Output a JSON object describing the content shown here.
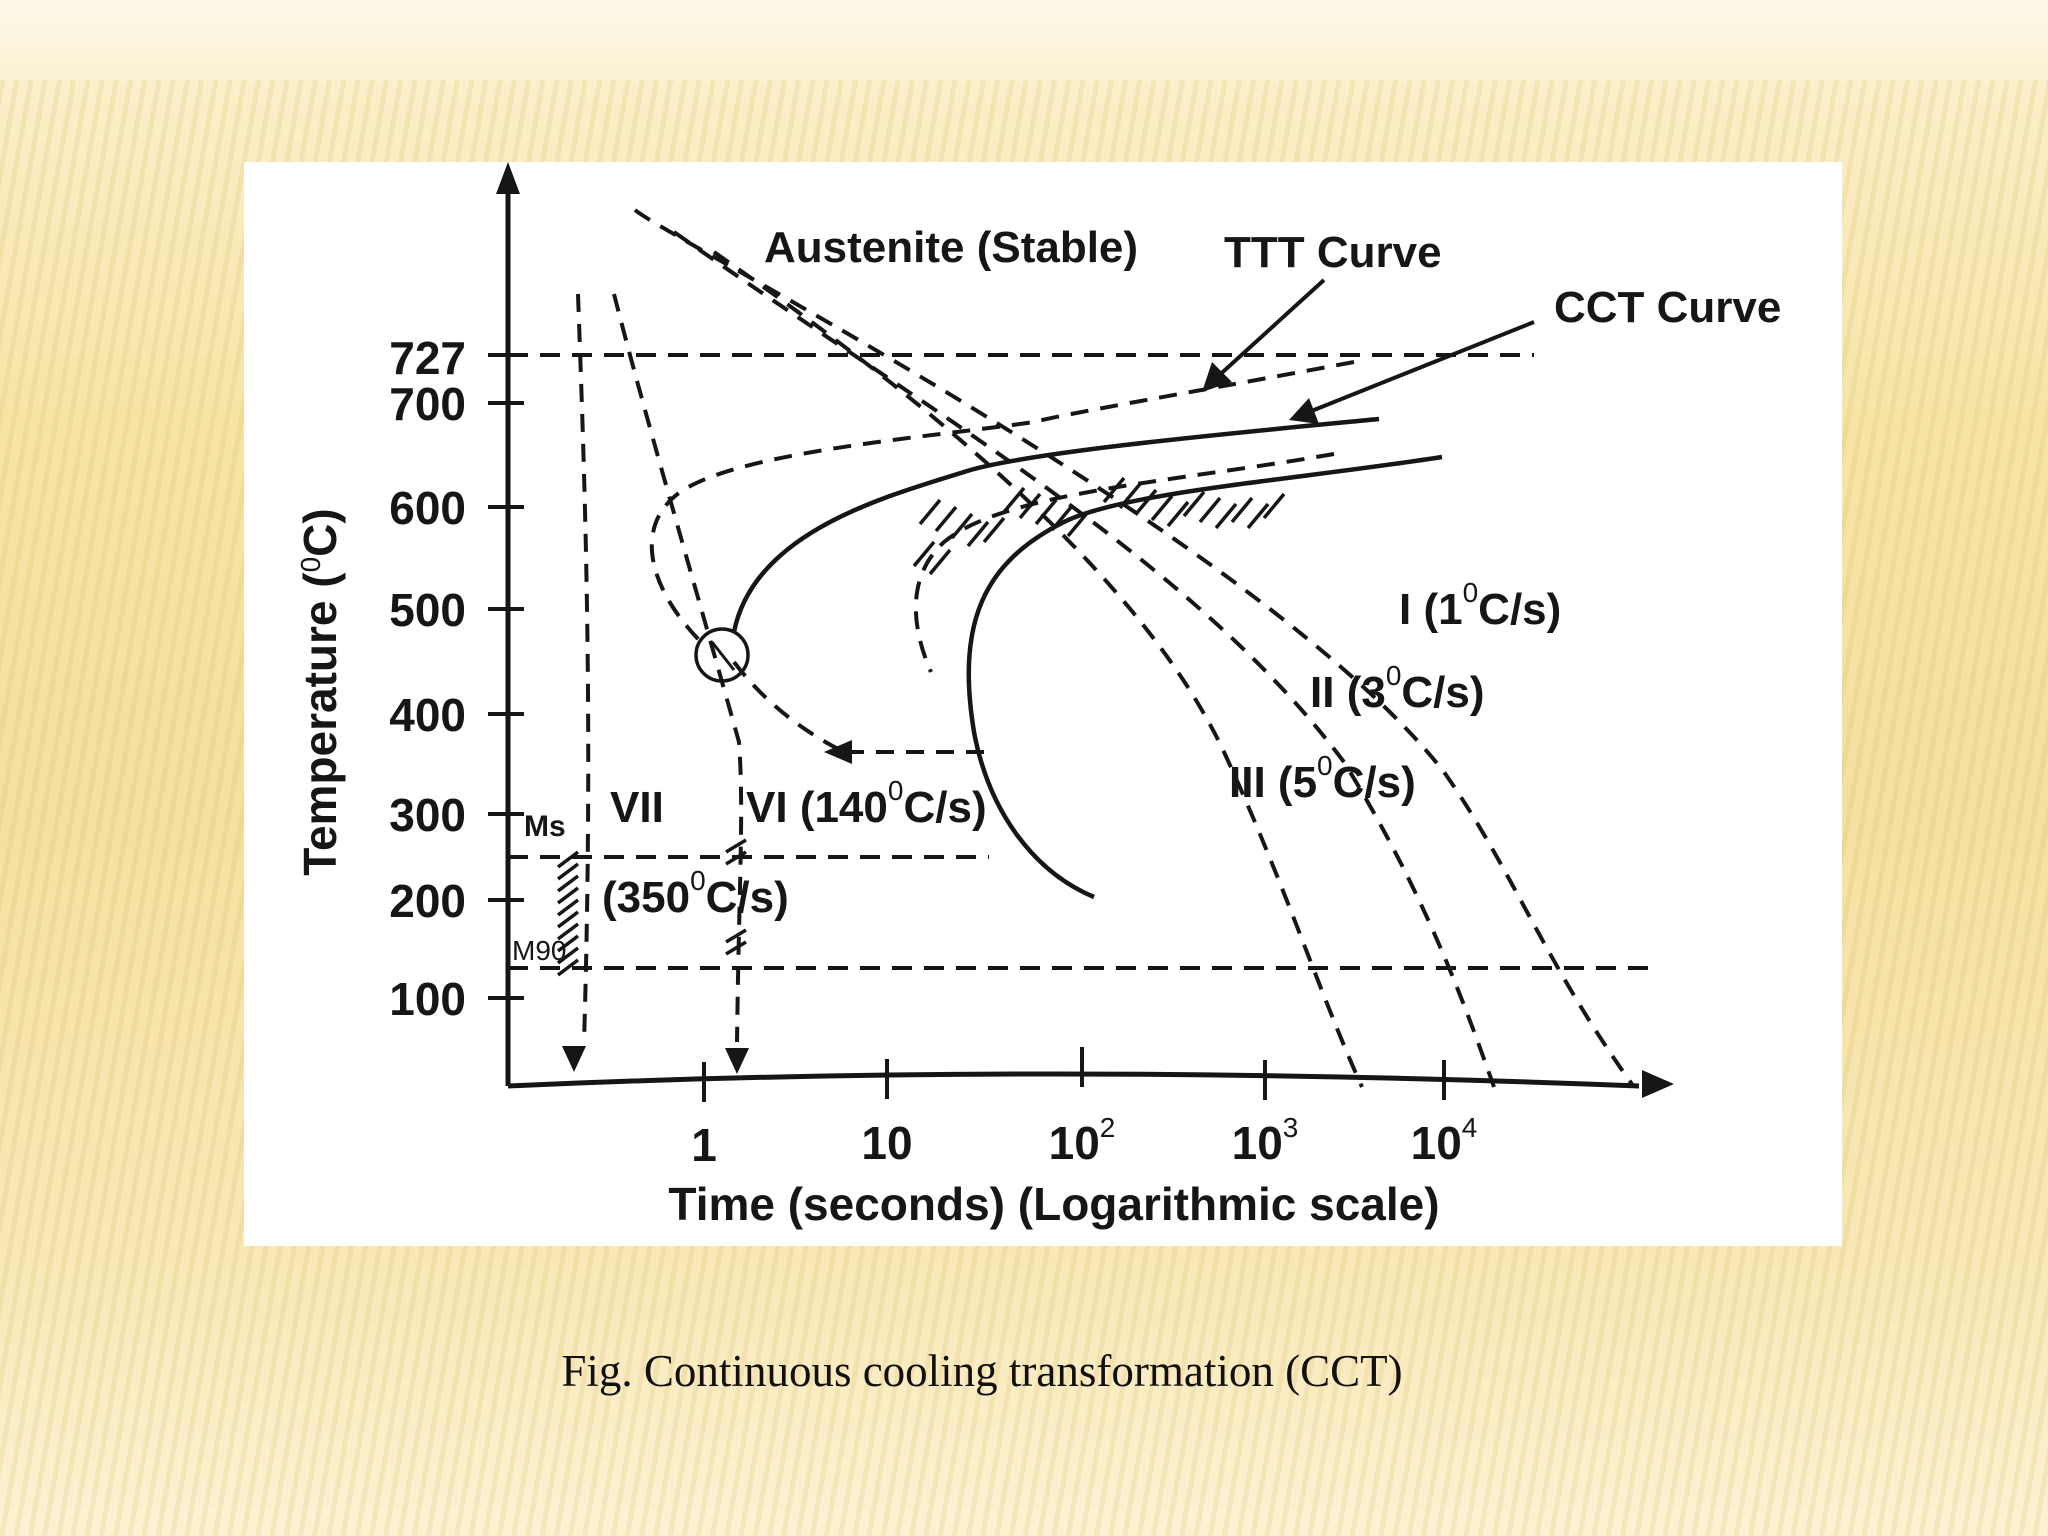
{
  "caption": "Fig.  Continuous cooling transformation  (CCT)",
  "diagram": {
    "y_axis_title": "Temperature (",
    "y_axis_unit_sup": "0",
    "y_axis_unit_tail": "C)",
    "x_axis_title": "Time (seconds) (Logarithmic scale)",
    "y_ticks": [
      "727",
      "700",
      "600",
      "500",
      "400",
      "300",
      "200",
      "100"
    ],
    "x_ticks": [
      {
        "base": "1",
        "sup": ""
      },
      {
        "base": "10",
        "sup": ""
      },
      {
        "base": "10",
        "sup": "2"
      },
      {
        "base": "10",
        "sup": "3"
      },
      {
        "base": "10",
        "sup": "4"
      }
    ],
    "labels": {
      "austenite": "Austenite (Stable)",
      "ttt_curve": "TTT Curve",
      "cct_curve": "CCT Curve",
      "ms": "Ms",
      "m90": "M90"
    },
    "cooling_rates": [
      {
        "numeral": "I",
        "rate": "(1",
        "sup": "0",
        "tail": "C/s)"
      },
      {
        "numeral": "II",
        "rate": "(3",
        "sup": "0",
        "tail": "C/s)"
      },
      {
        "numeral": "III",
        "rate": "(5",
        "sup": "0",
        "tail": "C/s)"
      },
      {
        "numeral": "VI",
        "rate": "(140",
        "sup": "0",
        "tail": "C/s)"
      },
      {
        "numeral": "VII",
        "rate": "(350",
        "sup": "0",
        "tail": "C/s)"
      }
    ]
  }
}
